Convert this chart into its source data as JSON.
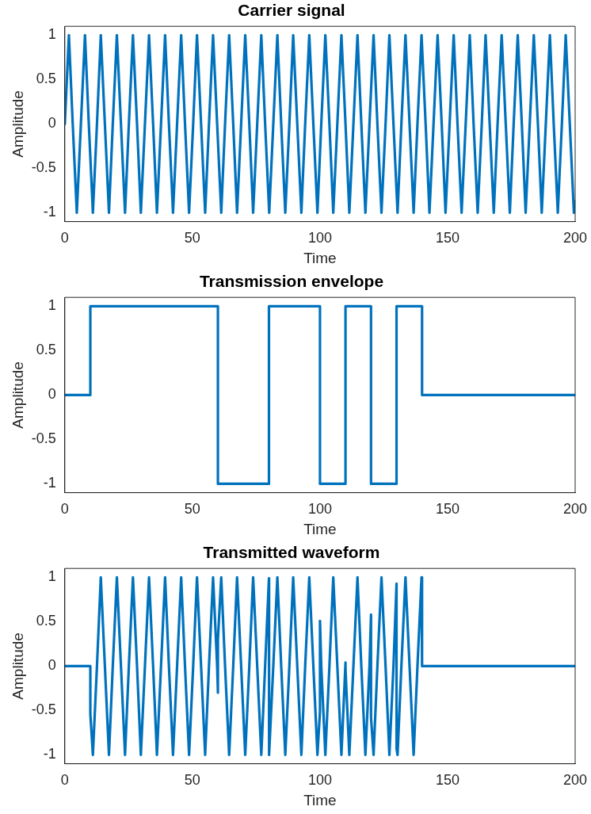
{
  "chart_data": [
    {
      "type": "line",
      "title": "Carrier signal",
      "xlabel": "Time",
      "ylabel": "Amplitude",
      "xlim": [
        0,
        200
      ],
      "xticks": [
        0,
        50,
        100,
        150,
        200
      ],
      "ylim": [
        -1.1,
        1.1
      ],
      "yticks": [
        -1,
        -0.5,
        0,
        0.5,
        1
      ],
      "grid": false,
      "legend": false,
      "marker": "none",
      "line_style": "solid",
      "series": [
        {
          "color": "#0072bd",
          "x": [
            0,
            1.6,
            3.1,
            4.7,
            6.3,
            7.9,
            9.4,
            11.0,
            12.6,
            14.1,
            15.7,
            17.3,
            18.8,
            20.4,
            22.0,
            23.6,
            25.1,
            26.7,
            28.3,
            29.8,
            31.4,
            33.0,
            34.6,
            36.1,
            37.7,
            39.3,
            40.8,
            42.4,
            44.0,
            45.6,
            47.1,
            48.7,
            50.3,
            51.8,
            53.4,
            55.0,
            56.5,
            58.1,
            59.7,
            61.3,
            62.8,
            64.4,
            66.0,
            67.5,
            69.1,
            70.7,
            72.3,
            73.8,
            75.4,
            77.0,
            78.5,
            80.1,
            81.7,
            83.3,
            84.8,
            86.4,
            88.0,
            89.5,
            91.1,
            92.7,
            94.2,
            95.8,
            97.4,
            99.0,
            100.5,
            102.1,
            103.7,
            105.2,
            106.8,
            108.4,
            110.0,
            111.5,
            113.1,
            114.7,
            116.2,
            117.8,
            119.4,
            121.0,
            122.5,
            124.1,
            125.7,
            127.2,
            128.8,
            130.4,
            131.9,
            133.5,
            135.1,
            136.7,
            138.2,
            139.8,
            141.4,
            142.9,
            144.5,
            146.1,
            147.7,
            149.2,
            150.8,
            152.4,
            153.9,
            155.5,
            157.1,
            158.7,
            160.2,
            161.8,
            163.4,
            164.9,
            166.5,
            168.1,
            169.6,
            171.2,
            172.8,
            174.4,
            175.9,
            177.5,
            179.1,
            180.6,
            182.2,
            183.8,
            185.4,
            186.9,
            188.5,
            190.1,
            191.6,
            193.2,
            194.8,
            196.3,
            197.9,
            199.5,
            200
          ],
          "values": [
            0,
            1,
            0,
            -1,
            0,
            1,
            0,
            -1,
            0,
            1,
            0,
            -1,
            0,
            1,
            0,
            -1,
            0,
            1,
            0,
            -1,
            0,
            1,
            0,
            -1,
            0,
            1,
            0,
            -1,
            0,
            1,
            0,
            -1,
            0,
            1,
            0,
            -1,
            0,
            1,
            0,
            -1,
            0,
            1,
            0,
            -1,
            0,
            1,
            0,
            -1,
            0,
            1,
            0,
            -1,
            0,
            1,
            0,
            -1,
            0,
            1,
            0,
            -1,
            0,
            1,
            0,
            -1,
            0,
            1,
            0,
            -1,
            0,
            1,
            0,
            -1,
            0,
            1,
            0,
            -1,
            0,
            1,
            0,
            -1,
            0,
            1,
            0,
            -1,
            0,
            1,
            0,
            -1,
            0,
            1,
            0,
            -1,
            0,
            1,
            0,
            -1,
            0,
            1,
            0,
            -1,
            0,
            1,
            0,
            -1,
            0,
            1,
            0,
            -1,
            0,
            1,
            0,
            -1,
            0,
            1,
            0,
            -1,
            0,
            1,
            0,
            -1,
            0,
            1,
            0,
            -1,
            0,
            1,
            0,
            -1,
            -0.87
          ]
        }
      ]
    },
    {
      "type": "step",
      "title": "Transmission envelope",
      "xlabel": "Time",
      "ylabel": "Amplitude",
      "xlim": [
        0,
        200
      ],
      "xticks": [
        0,
        50,
        100,
        150,
        200
      ],
      "ylim": [
        -1.1,
        1.1
      ],
      "yticks": [
        -1,
        -0.5,
        0,
        0.5,
        1
      ],
      "grid": false,
      "legend": false,
      "marker": "none",
      "line_style": "solid",
      "series": [
        {
          "color": "#0072bd",
          "x": [
            0,
            10,
            60,
            80,
            100,
            110,
            120,
            130,
            140,
            200
          ],
          "values": [
            0,
            1,
            -1,
            1,
            -1,
            1,
            -1,
            1,
            0,
            0
          ]
        }
      ]
    },
    {
      "type": "line",
      "title": "Transmitted waveform",
      "xlabel": "Time",
      "ylabel": "Amplitude",
      "xlim": [
        0,
        200
      ],
      "xticks": [
        0,
        50,
        100,
        150,
        200
      ],
      "ylim": [
        -1.1,
        1.1
      ],
      "yticks": [
        -1,
        -0.5,
        0,
        0.5,
        1
      ],
      "grid": false,
      "legend": false,
      "marker": "none",
      "line_style": "solid",
      "series": [
        {
          "color": "#0072bd",
          "x": [
            0,
            10,
            10,
            11.0,
            12.6,
            14.1,
            15.7,
            17.3,
            18.8,
            20.4,
            22.0,
            23.6,
            25.1,
            26.7,
            28.3,
            29.8,
            31.4,
            33.0,
            34.6,
            36.1,
            37.7,
            39.3,
            40.8,
            42.4,
            44.0,
            45.6,
            47.1,
            48.7,
            50.3,
            51.8,
            53.4,
            55.0,
            56.5,
            58.1,
            59.7,
            60,
            60,
            61.3,
            62.8,
            64.4,
            66.0,
            67.5,
            69.1,
            70.7,
            72.3,
            73.8,
            75.4,
            77.0,
            78.5,
            80,
            80,
            80.1,
            81.7,
            83.3,
            84.8,
            86.4,
            88.0,
            89.5,
            91.1,
            92.7,
            94.2,
            95.8,
            97.4,
            99.0,
            100,
            100,
            100.5,
            102.1,
            103.7,
            105.2,
            106.8,
            108.4,
            110,
            110,
            111.5,
            113.1,
            114.7,
            116.2,
            117.8,
            119.4,
            120,
            120,
            121.0,
            122.5,
            124.1,
            125.7,
            127.2,
            128.8,
            130,
            130,
            130.4,
            131.9,
            133.5,
            135.1,
            136.7,
            138.2,
            139.8,
            140,
            140,
            200
          ],
          "values": [
            0,
            0,
            -0.54,
            -1,
            0,
            1,
            0,
            -1,
            0,
            1,
            0,
            -1,
            0,
            1,
            0,
            -1,
            0,
            1,
            0,
            -1,
            0,
            1,
            0,
            -1,
            0,
            1,
            0,
            -1,
            0,
            1,
            0,
            -1,
            0,
            1,
            0,
            -0.3,
            0.3,
            1,
            0,
            -1,
            0,
            1,
            0,
            -1,
            0,
            1,
            0,
            -1,
            0,
            0.99,
            -0.99,
            -1,
            0,
            1,
            0,
            -1,
            0,
            1,
            0,
            -1,
            0,
            1,
            0,
            -1,
            -0.51,
            0.51,
            0,
            -1,
            0,
            1,
            0,
            -1,
            0.04,
            -0.04,
            -1,
            0,
            1,
            0,
            -1,
            0,
            0.58,
            -0.58,
            -1,
            0,
            1,
            0,
            -1,
            0,
            0.93,
            -0.93,
            -1,
            0,
            1,
            0,
            -1,
            0,
            1,
            0.98,
            0,
            0
          ]
        }
      ]
    }
  ]
}
